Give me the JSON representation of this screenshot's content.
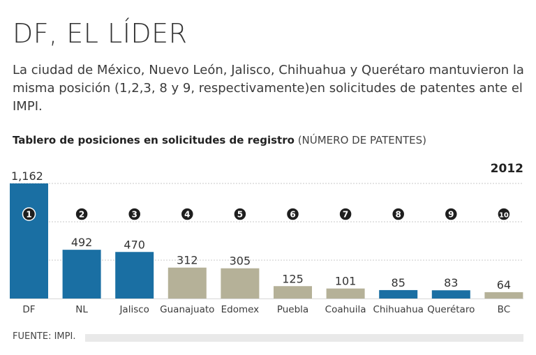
{
  "title": "DF, EL LÍDER",
  "subtitle": "La ciudad de México, Nuevo León, Jalisco, Chihuahua y Querétaro mantuvieron la misma posición (1,2,3, 8 y 9, respectivamente)en solicitudes de patentes ante el IMPI.",
  "chart_heading": {
    "bold": "Tablero de posiciones en solicitudes de registro",
    "light": "(NÚMERO DE PATENTES)"
  },
  "source": "FUENTE: IMPI.",
  "colors": {
    "blue": "#1a6fa3",
    "tan": "#b5b198",
    "grid": "#c8c8c8",
    "badge": "#1e1e1e"
  },
  "chart_data": {
    "type": "bar",
    "year_label": "2012",
    "categories": [
      "DF",
      "NL",
      "Jalisco",
      "Guanajuato",
      "Edomex",
      "Puebla",
      "Coahuila",
      "Chihuahua",
      "Querétaro",
      "BC"
    ],
    "values": [
      1162,
      492,
      470,
      312,
      305,
      125,
      101,
      85,
      83,
      64
    ],
    "value_labels": [
      "1,162",
      "492",
      "470",
      "312",
      "305",
      "125",
      "101",
      "85",
      "83",
      "64"
    ],
    "ranks": [
      "1",
      "2",
      "3",
      "4",
      "5",
      "6",
      "7",
      "8",
      "9",
      "10"
    ],
    "highlight": [
      true,
      true,
      true,
      false,
      false,
      false,
      false,
      true,
      true,
      false
    ],
    "ylim": [
      0,
      1162
    ],
    "grid": true
  }
}
